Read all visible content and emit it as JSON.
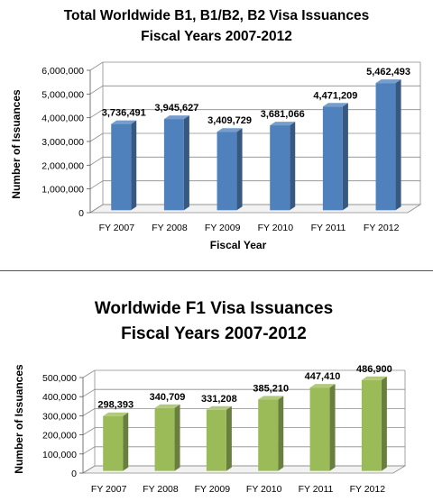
{
  "chart_data": [
    {
      "type": "bar",
      "title": "Total Worldwide B1, B1/B2, B2 Visa Issuances",
      "subtitle": "Fiscal Years 2007-2012",
      "xlabel": "Fiscal Year",
      "ylabel": "Number of Issuances",
      "categories": [
        "FY 2007",
        "FY 2008",
        "FY 2009",
        "FY 2010",
        "FY 2011",
        "FY 2012"
      ],
      "values": [
        3736491,
        3945627,
        3409729,
        3681066,
        4471209,
        5462493
      ],
      "data_labels": [
        "3,736,491",
        "3,945,627",
        "3,409,729",
        "3,681,066",
        "4,471,209",
        "5,462,493"
      ],
      "ylim": [
        0,
        6000000
      ],
      "yticks": [
        0,
        1000000,
        2000000,
        3000000,
        4000000,
        5000000,
        6000000
      ],
      "ytick_labels": [
        "0",
        "1,000,000",
        "2,000,000",
        "3,000,000",
        "4,000,000",
        "5,000,000",
        "6,000,000"
      ],
      "grid": true,
      "bar_color": "#4f81bd"
    },
    {
      "type": "bar",
      "title": "Worldwide F1 Visa Issuances",
      "subtitle": "Fiscal Years 2007-2012",
      "xlabel": "",
      "ylabel": "Number of Issuances",
      "categories": [
        "FY 2007",
        "FY 2008",
        "FY 2009",
        "FY 2010",
        "FY 2011",
        "FY 2012"
      ],
      "values": [
        298393,
        340709,
        331208,
        385210,
        447410,
        486900
      ],
      "data_labels": [
        "298,393",
        "340,709",
        "331,208",
        "385,210",
        "447,410",
        "486,900"
      ],
      "ylim": [
        0,
        500000
      ],
      "yticks": [
        0,
        100000,
        200000,
        300000,
        400000,
        500000
      ],
      "ytick_labels": [
        "0",
        "100,000",
        "200,000",
        "300,000",
        "400,000",
        "500,000"
      ],
      "grid": true,
      "bar_color": "#9bbb59"
    }
  ]
}
